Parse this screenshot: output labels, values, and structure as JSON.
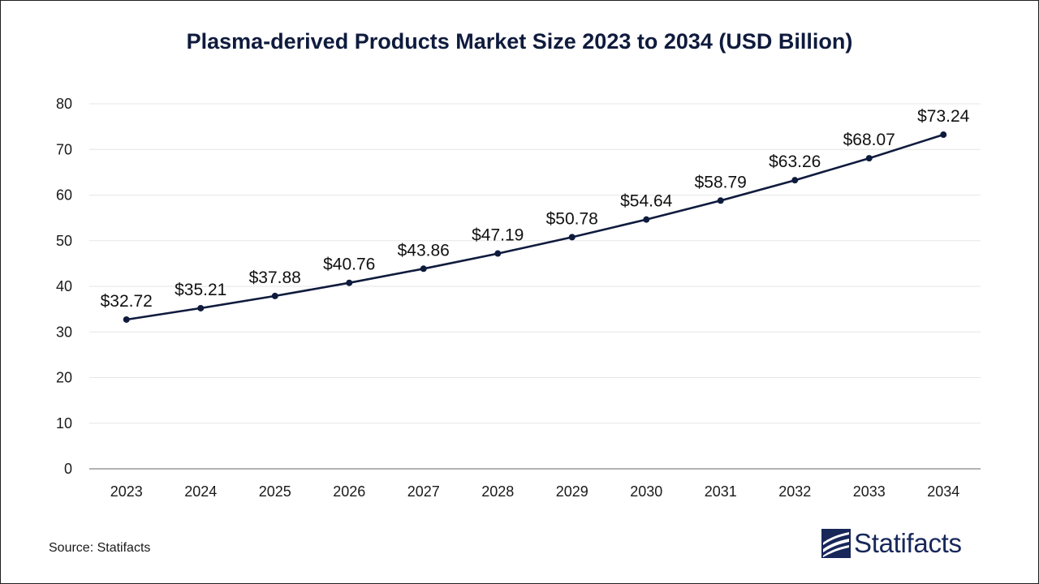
{
  "chart_data": {
    "type": "line",
    "title": "Plasma-derived Products Market Size 2023 to 2034 (USD Billion)",
    "categories": [
      "2023",
      "2024",
      "2025",
      "2026",
      "2027",
      "2028",
      "2029",
      "2030",
      "2031",
      "2032",
      "2033",
      "2034"
    ],
    "values": [
      32.72,
      35.21,
      37.88,
      40.76,
      43.86,
      47.19,
      50.78,
      54.64,
      58.79,
      63.26,
      68.07,
      73.24
    ],
    "data_labels": [
      "$32.72",
      "$35.21",
      "$37.88",
      "$40.76",
      "$43.86",
      "$47.19",
      "$50.78",
      "$54.64",
      "$58.79",
      "$63.26",
      "$68.07",
      "$73.24"
    ],
    "yticks": [
      "0",
      "10",
      "20",
      "30",
      "40",
      "50",
      "60",
      "70",
      "80"
    ],
    "ylim": [
      0,
      80
    ],
    "xlabel": "",
    "ylabel": "",
    "grid": true,
    "legend": "none",
    "line_color": "#0f1b3d"
  },
  "footer": {
    "source": "Source: Statifacts",
    "brand": "Statifacts",
    "brand_color": "#17275a"
  }
}
